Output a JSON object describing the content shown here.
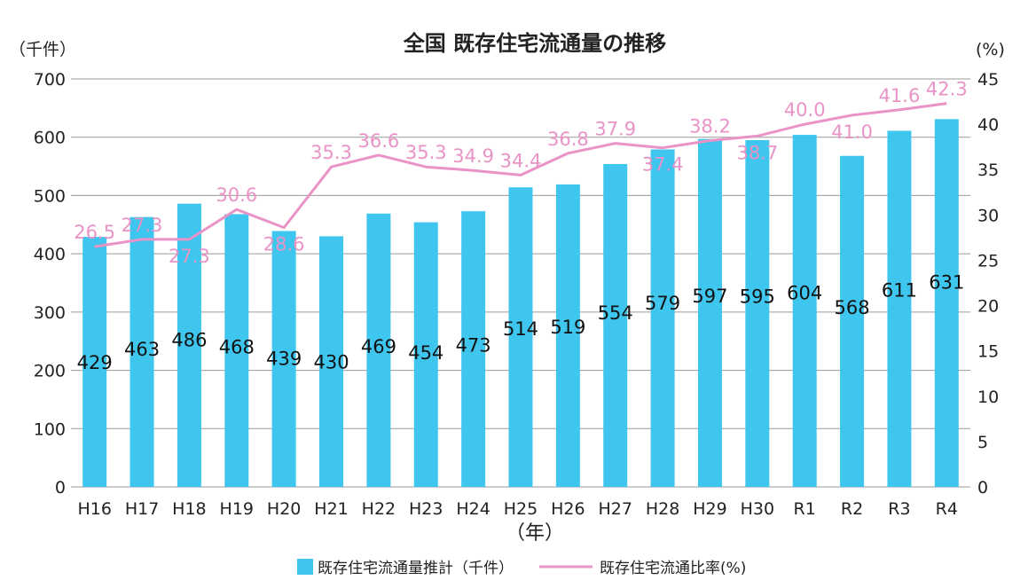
{
  "chart_data": {
    "type": "bar",
    "title": "全国 既存住宅流通量の推移",
    "xlabel": "（年）",
    "y_left_unit": "（千件）",
    "y_right_unit": "(%)",
    "ylim_left": [
      0,
      700
    ],
    "ylim_right": [
      0,
      45
    ],
    "y_left_ticks": [
      0,
      100,
      200,
      300,
      400,
      500,
      600,
      700
    ],
    "y_right_ticks": [
      0,
      5,
      10,
      15,
      20,
      25,
      30,
      35,
      40,
      45
    ],
    "categories": [
      "H16",
      "H17",
      "H18",
      "H19",
      "H20",
      "H21",
      "H22",
      "H23",
      "H24",
      "H25",
      "H26",
      "H27",
      "H28",
      "H29",
      "H30",
      "R1",
      "R2",
      "R3",
      "R4"
    ],
    "series": [
      {
        "name": "既存住宅流通量推計（千件）",
        "type": "bar",
        "axis": "left",
        "color": "#3ec6ee",
        "values": [
          429,
          463,
          486,
          468,
          439,
          430,
          469,
          454,
          473,
          514,
          519,
          554,
          579,
          597,
          595,
          604,
          568,
          611,
          631
        ]
      },
      {
        "name": "既存住宅流通比率(%)",
        "type": "line",
        "axis": "right",
        "color": "#e993c6",
        "values": [
          26.5,
          27.3,
          27.3,
          30.6,
          28.6,
          35.3,
          36.6,
          35.3,
          34.9,
          34.4,
          36.8,
          37.9,
          37.4,
          38.2,
          38.7,
          40.0,
          41.0,
          41.6,
          42.3
        ],
        "labels": [
          "26.5",
          "27.3",
          "27.3",
          "30.6",
          "28.6",
          "35.3",
          "36.6",
          "35.3",
          "34.9",
          "34.4",
          "36.8",
          "37.9",
          "37.4",
          "38.2",
          "38.7",
          "40.0",
          "41.0",
          "41.6",
          "42.3"
        ]
      }
    ],
    "grid": true,
    "legend_position": "bottom"
  }
}
